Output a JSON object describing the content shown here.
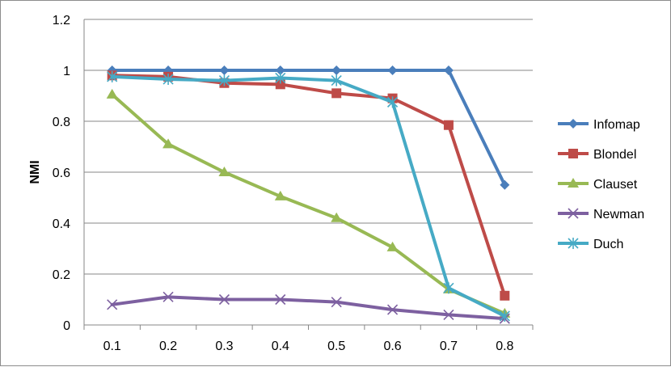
{
  "chart_data": {
    "type": "line",
    "title": "",
    "xlabel": "",
    "ylabel": "NMI",
    "categories": [
      "0.1",
      "0.2",
      "0.3",
      "0.4",
      "0.5",
      "0.6",
      "0.7",
      "0.8"
    ],
    "ylim": [
      0,
      1.2
    ],
    "yticks": [
      "0",
      "0.2",
      "0.4",
      "0.6",
      "0.8",
      "1",
      "1.2"
    ],
    "grid": true,
    "legend_position": "right",
    "series": [
      {
        "name": "Infomap",
        "color": "#4a7ebb",
        "marker": "diamond",
        "values": [
          1.0,
          1.0,
          1.0,
          1.0,
          1.0,
          1.0,
          1.0,
          0.55
        ]
      },
      {
        "name": "Blondel",
        "color": "#be4b48",
        "marker": "square",
        "values": [
          0.98,
          0.975,
          0.95,
          0.945,
          0.91,
          0.89,
          0.785,
          0.115
        ]
      },
      {
        "name": "Clauset",
        "color": "#98b954",
        "marker": "triangle",
        "values": [
          0.905,
          0.71,
          0.6,
          0.505,
          0.42,
          0.305,
          0.14,
          0.045
        ]
      },
      {
        "name": "Newman",
        "color": "#7d60a0",
        "marker": "x",
        "values": [
          0.08,
          0.11,
          0.1,
          0.1,
          0.09,
          0.06,
          0.04,
          0.025
        ]
      },
      {
        "name": "Duch",
        "color": "#46aac5",
        "marker": "star",
        "values": [
          0.975,
          0.965,
          0.96,
          0.97,
          0.96,
          0.875,
          0.145,
          0.035
        ]
      }
    ]
  }
}
